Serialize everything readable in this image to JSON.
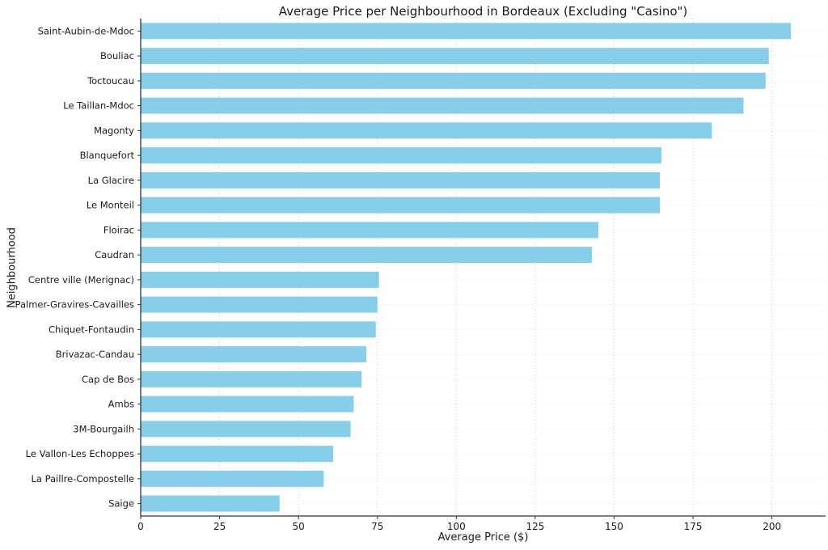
{
  "chart_data": {
    "type": "bar",
    "orientation": "horizontal",
    "title": "Average Price per Neighbourhood in Bordeaux (Excluding \"Casino\")",
    "xlabel": "Average Price ($)",
    "ylabel": "Neighbourhood",
    "categories": [
      "Saint-Aubin-de-Mdoc",
      "Bouliac",
      "Toctoucau",
      "Le Taillan-Mdoc",
      "Magonty",
      "Blanquefort",
      "La Glacire",
      "Le Monteil",
      "Floirac",
      "Caudran",
      "Centre ville (Merignac)",
      "Palmer-Gravires-Cavailles",
      "Chiquet-Fontaudin",
      "Brivazac-Candau",
      "Cap de Bos",
      "Ambs",
      "3M-Bourgailh",
      "Le Vallon-Les Echoppes",
      "La Paillre-Compostelle",
      "Saige"
    ],
    "values": [
      206,
      199,
      198,
      191,
      181,
      165,
      164.5,
      164.5,
      145,
      143,
      75.5,
      75,
      74.5,
      71.5,
      70,
      67.5,
      66.5,
      61,
      58,
      44
    ],
    "xticks": [
      0,
      25,
      50,
      75,
      100,
      125,
      150,
      175,
      200
    ],
    "xlim": [
      0,
      217
    ],
    "grid": true,
    "legend": "none",
    "bar_color": "#87CEEB",
    "grid_color": "#cccccc",
    "spine_color": "#333333",
    "text_color": "#1a1a1a"
  }
}
